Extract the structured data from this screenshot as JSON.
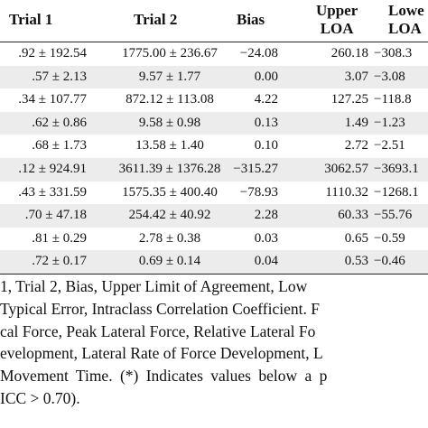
{
  "table": {
    "headers": {
      "trial1": "Trial 1",
      "trial2": "Trial 2",
      "bias": "Bias",
      "upper_line1": "Upper",
      "upper_line2": "LOA",
      "lower_line1": "Lowe",
      "lower_line2": "LOA"
    },
    "rows": [
      {
        "trial1": ".92 ± 192.54",
        "trial2": "1775.00 ± 236.67",
        "bias": "−24.08",
        "upper": "260.18",
        "lower": "−308.3"
      },
      {
        "trial1": ".57 ± 2.13",
        "trial2": "9.57 ± 1.77",
        "bias": "0.00",
        "upper": "3.07",
        "lower": "−3.08"
      },
      {
        "trial1": ".34 ± 107.77",
        "trial2": "872.12 ± 113.08",
        "bias": "4.22",
        "upper": "127.25",
        "lower": "−118.8"
      },
      {
        "trial1": ".62 ± 0.86",
        "trial2": "9.58 ± 0.98",
        "bias": "0.13",
        "upper": "1.49",
        "lower": "−1.23"
      },
      {
        "trial1": ".68 ± 1.73",
        "trial2": "13.58 ± 1.40",
        "bias": "0.10",
        "upper": "2.72",
        "lower": "−2.51"
      },
      {
        "trial1": ".12 ± 924.91",
        "trial2": "3611.39 ± 1376.28",
        "bias": "−315.27",
        "upper": "3062.57",
        "lower": "−3693.1"
      },
      {
        "trial1": ".43 ± 331.59",
        "trial2": "1575.35 ± 400.40",
        "bias": "−78.93",
        "upper": "1110.32",
        "lower": "−1268.1"
      },
      {
        "trial1": ".70 ± 47.18",
        "trial2": "254.42 ± 40.92",
        "bias": "2.28",
        "upper": "60.33",
        "lower": "−55.76"
      },
      {
        "trial1": ".81 ± 0.29",
        "trial2": "2.78 ± 0.38",
        "bias": "0.03",
        "upper": "0.65",
        "lower": "−0.59"
      },
      {
        "trial1": ".72 ± 0.17",
        "trial2": "0.69 ± 0.14",
        "bias": "0.04",
        "upper": "0.53",
        "lower": "−0.46"
      }
    ]
  },
  "caption": {
    "lines": [
      " 1, Trial 2, Bias, Upper Limit of Agreement, Low",
      "Typical Error, Intraclass Correlation Coefficient. F",
      "cal Force, Peak Lateral Force, Relative Lateral Fo",
      "evelopment, Lateral Rate of Force Development, L",
      "Movement Time. (*) Indicates values below a p",
      " ICC > 0.70)."
    ]
  }
}
